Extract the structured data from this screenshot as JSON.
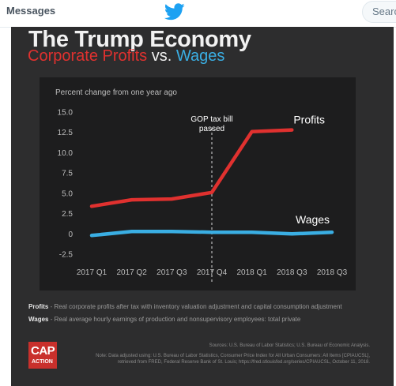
{
  "header": {
    "messages_label": "Messages",
    "logo_icon": "twitter-bird-icon",
    "search_placeholder": "Searc"
  },
  "infographic": {
    "title": "The Trump Economy",
    "subtitle_profits": "Corporate Profits",
    "subtitle_vs": " vs. ",
    "subtitle_wages": "Wages",
    "colors": {
      "profits": "#e0312f",
      "wages": "#3aaee3",
      "background": "#2d2d2e",
      "panel": "#1d1d1e"
    },
    "definitions": [
      {
        "term": "Profits",
        "text": " - Real corporate profits after tax with inventory valuation adjustment and capital consumption adjustment"
      },
      {
        "term": "Wages",
        "text": " - Real average hourly earnings of production and nonsupervisory employees: total private"
      }
    ],
    "logo": {
      "line1": "CAP",
      "line2": "ACTION"
    },
    "sources": "Sources: U.S. Bureau of Labor Statistics; U.S. Bureau of Economic Analysis.",
    "note": "Note: Data adjusted using: U.S. Bureau of Labor Statistics, Consumer Price Index for All Urban Consumers: All Items [CPIAUCSL], retrieved from FRED, Federal Reserve Bank of St. Louis; https://fred.stlouisfed.org/series/CPIAUCSL, October 11, 2018."
  },
  "chart_data": {
    "type": "line",
    "ylabel": "Percent change from one year ago",
    "categories": [
      "2017 Q1",
      "2017 Q2",
      "2017 Q3",
      "2017 Q4",
      "2018 Q1",
      "2018 Q3",
      "2018 Q3"
    ],
    "yticks": [
      "15.0",
      "12.5",
      "10.0",
      "7.5",
      "5.0",
      "2.5",
      "0",
      "-2.5"
    ],
    "ytick_values": [
      15,
      12.5,
      10,
      7.5,
      5,
      2.5,
      0,
      -2.5
    ],
    "ylim": [
      -2.5,
      15
    ],
    "grid": false,
    "annotation": {
      "line1": "GOP tax bill",
      "line2": "passed",
      "at_category": "2017 Q4"
    },
    "series": [
      {
        "name": "Profits",
        "color": "#e0312f",
        "x": [
          0,
          1,
          2,
          3,
          4,
          5
        ],
        "values": [
          3.4,
          4.2,
          4.3,
          5.1,
          12.6,
          12.8
        ]
      },
      {
        "name": "Wages",
        "color": "#3aaee3",
        "x": [
          0,
          1,
          2,
          3,
          4,
          5,
          6
        ],
        "values": [
          -0.2,
          0.3,
          0.3,
          0.2,
          0.2,
          0.0,
          0.2
        ]
      }
    ]
  }
}
